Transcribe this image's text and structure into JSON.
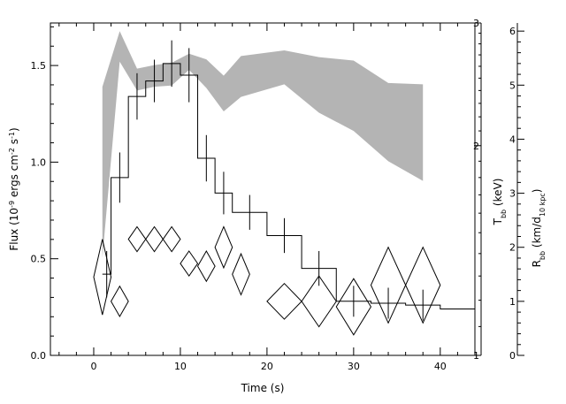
{
  "chart_data": {
    "type": "line",
    "x_axis": {
      "label": "Time (s)",
      "range": [
        -5,
        44
      ],
      "ticks": [
        0,
        10,
        20,
        30,
        40
      ],
      "tick_labels": [
        "0",
        "10",
        "20",
        "30",
        "40"
      ]
    },
    "y_axes": [
      {
        "side": "left",
        "label_parts": [
          "Flux (10",
          "-9",
          " ergs cm",
          "-2",
          " s",
          "-1",
          ")"
        ],
        "range": [
          0,
          1.72
        ],
        "ticks": [
          0,
          0.5,
          1.0,
          1.5
        ],
        "tick_labels": [
          "0.0",
          "0.5",
          "1.0",
          "1.5"
        ]
      },
      {
        "side": "right-inner",
        "label_parts": [
          "T",
          "bb",
          " (keV)"
        ],
        "scale": "log",
        "range": [
          1,
          3
        ],
        "ticks": [
          1,
          2,
          3
        ],
        "tick_labels": [
          "1",
          "2",
          "3"
        ]
      },
      {
        "side": "right-outer",
        "label_parts": [
          "R",
          "bb",
          " (km/d",
          "10 kpc",
          ")"
        ],
        "range": [
          0,
          6.15
        ],
        "ticks": [
          0,
          1,
          2,
          3,
          4,
          5,
          6
        ],
        "tick_labels": [
          "0",
          "1",
          "2",
          "3",
          "4",
          "5",
          "6"
        ]
      }
    ],
    "series": [
      {
        "style": "histogram-with-errorbars",
        "axis": "flux",
        "bins": [
          {
            "x0": 1,
            "x1": 2,
            "y": 0.42,
            "err": 0.12
          },
          {
            "x0": 2,
            "x1": 4,
            "y": 0.92,
            "err": 0.13
          },
          {
            "x0": 4,
            "x1": 6,
            "y": 1.34,
            "err": 0.12
          },
          {
            "x0": 6,
            "x1": 8,
            "y": 1.42,
            "err": 0.11
          },
          {
            "x0": 8,
            "x1": 10,
            "y": 1.51,
            "err": 0.12
          },
          {
            "x0": 10,
            "x1": 12,
            "y": 1.45,
            "err": 0.14
          },
          {
            "x0": 12,
            "x1": 14,
            "y": 1.02,
            "err": 0.12
          },
          {
            "x0": 14,
            "x1": 16,
            "y": 0.84,
            "err": 0.11
          },
          {
            "x0": 16,
            "x1": 20,
            "y": 0.74,
            "err": 0.09
          },
          {
            "x0": 20,
            "x1": 24,
            "y": 0.62,
            "err": 0.09
          },
          {
            "x0": 24,
            "x1": 28,
            "y": 0.45,
            "err": 0.09
          },
          {
            "x0": 28,
            "x1": 32,
            "y": 0.28,
            "err": 0.08
          },
          {
            "x0": 32,
            "x1": 36,
            "y": 0.27,
            "err": 0.08
          },
          {
            "x0": 36,
            "x1": 40,
            "y": 0.26,
            "err": 0.08
          },
          {
            "x0": 40,
            "x1": 44,
            "y": 0.24,
            "err": 0
          }
        ]
      },
      {
        "style": "shaded-band",
        "axis": "temperature",
        "color": "#b4b4b4",
        "x": [
          1,
          3,
          5,
          7,
          9,
          11,
          13,
          15,
          17,
          22,
          26,
          30,
          34,
          38
        ],
        "upper": [
          2.43,
          2.92,
          2.58,
          2.61,
          2.63,
          2.71,
          2.66,
          2.52,
          2.69,
          2.74,
          2.68,
          2.65,
          2.46,
          2.45
        ],
        "lower": [
          1.38,
          2.64,
          2.4,
          2.43,
          2.44,
          2.57,
          2.42,
          2.24,
          2.35,
          2.45,
          2.23,
          2.1,
          1.9,
          1.78
        ]
      },
      {
        "style": "diamond-markers",
        "axis": "radius",
        "points": [
          {
            "x": 1,
            "y": 1.45,
            "xerr": 1,
            "yerr": 0.7
          },
          {
            "x": 3,
            "y": 1.0,
            "xerr": 1,
            "yerr": 0.28
          },
          {
            "x": 5,
            "y": 2.15,
            "xerr": 1,
            "yerr": 0.23
          },
          {
            "x": 7,
            "y": 2.15,
            "xerr": 1,
            "yerr": 0.23
          },
          {
            "x": 9,
            "y": 2.15,
            "xerr": 1,
            "yerr": 0.23
          },
          {
            "x": 11,
            "y": 1.7,
            "xerr": 1,
            "yerr": 0.23
          },
          {
            "x": 13,
            "y": 1.65,
            "xerr": 1,
            "yerr": 0.28
          },
          {
            "x": 15,
            "y": 2.0,
            "xerr": 1,
            "yerr": 0.38
          },
          {
            "x": 17,
            "y": 1.5,
            "xerr": 1,
            "yerr": 0.38
          },
          {
            "x": 22,
            "y": 1.0,
            "xerr": 2,
            "yerr": 0.33
          },
          {
            "x": 26,
            "y": 1.0,
            "xerr": 2,
            "yerr": 0.47
          },
          {
            "x": 30,
            "y": 0.9,
            "xerr": 2,
            "yerr": 0.52
          },
          {
            "x": 34,
            "y": 1.3,
            "xerr": 2,
            "yerr": 0.7
          },
          {
            "x": 38,
            "y": 1.3,
            "xerr": 2,
            "yerr": 0.7
          }
        ]
      }
    ]
  }
}
